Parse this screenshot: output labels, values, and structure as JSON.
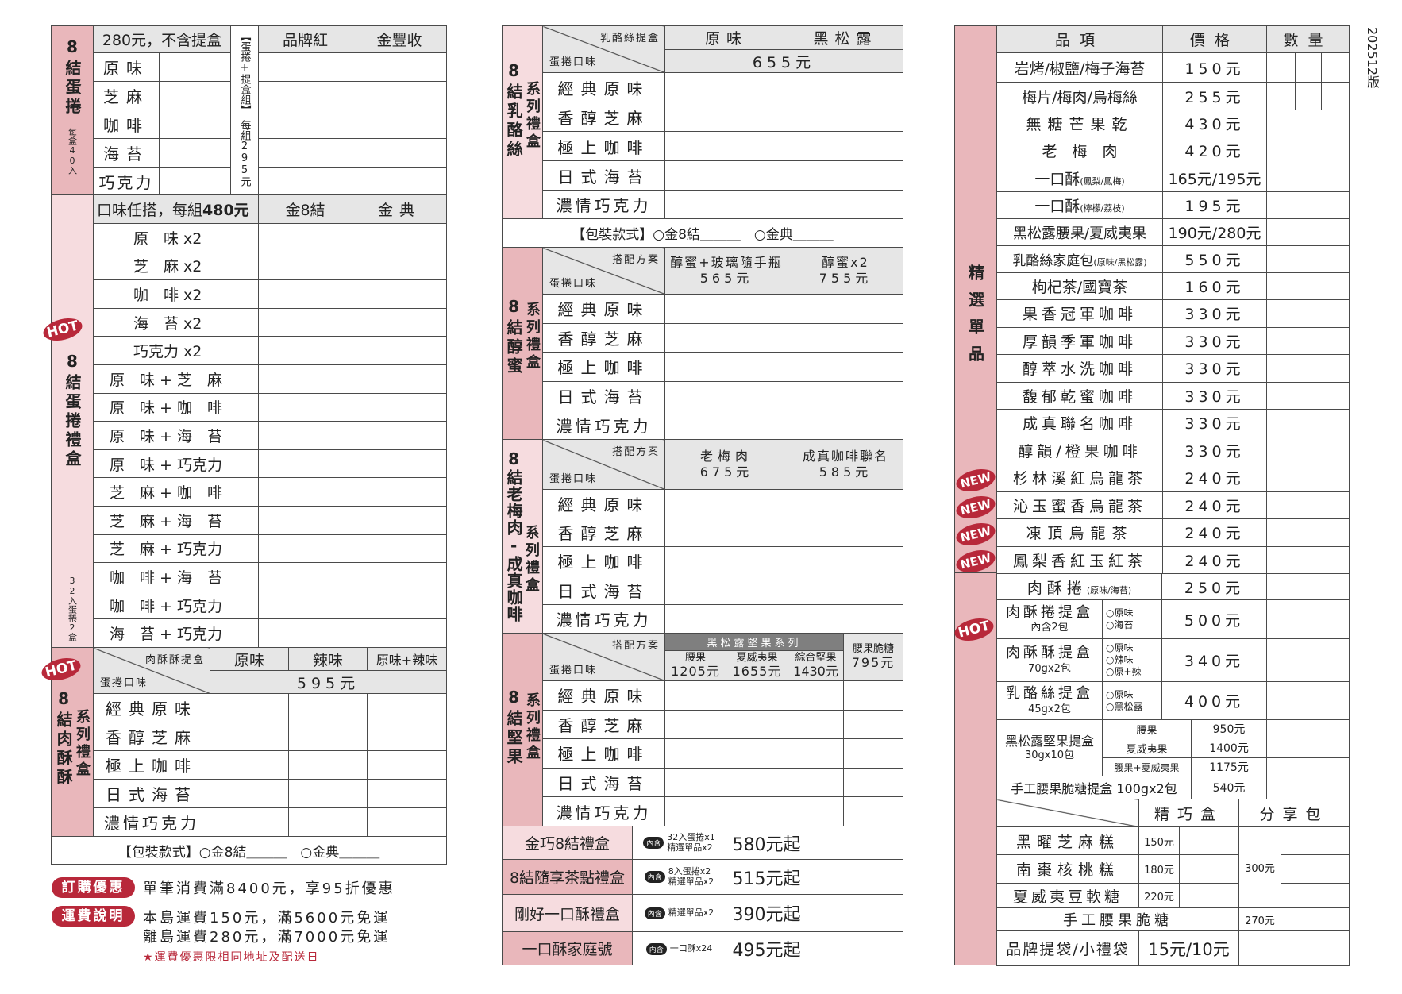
{
  "flavors": [
    "經典原味",
    "香醇芝麻",
    "極上咖啡",
    "日式海苔",
    "濃情巧克力"
  ],
  "packaging": {
    "label": "【包裝款式】",
    "opt1": "○金8結",
    "opt2": "○金典"
  },
  "left": {
    "egg_roll": {
      "title": "8結蛋捲",
      "subtitle": "每盒40入",
      "price_note": "280元，不含提盒",
      "flavors": [
        "原味",
        "芝麻",
        "咖啡",
        "海苔",
        "巧克力"
      ],
      "combo_label": "【蛋捲+提盒組】",
      "combo_price": "每組295元",
      "box_headers": [
        "品牌紅",
        "金豐收"
      ]
    },
    "gift_box": {
      "badge": "HOT",
      "title": "8結蛋捲禮盒",
      "subtitle": "32入蛋捲2盒",
      "header_text": "口味任搭，每組",
      "header_price": "480元",
      "box_headers": [
        "金8結",
        "金典"
      ],
      "items": [
        "原　味 x2",
        "芝　麻 x2",
        "咖　啡 x2",
        "海　苔 x2",
        "巧克力 x2",
        "原　味 + 芝　麻",
        "原　味 + 咖　啡",
        "原　味 + 海　苔",
        "原　味 + 巧克力",
        "芝　麻 + 咖　啡",
        "芝　麻 + 海　苔",
        "芝　麻 + 巧克力",
        "咖　啡 + 海　苔",
        "咖　啡 + 巧克力",
        "海　苔 + 巧克力"
      ]
    },
    "pork": {
      "badge": "HOT",
      "title": "8結肉酥酥",
      "series": "系列禮盒",
      "diag_top": "肉酥酥提盒",
      "diag_bottom": "蛋捲口味",
      "headers": [
        "原味",
        "辣味",
        "原味+辣味"
      ],
      "price": "595元"
    },
    "notes": {
      "promo_badge": "訂購優惠",
      "promo_text": "單筆消費滿8400元，享95折優惠",
      "shipping_badge": "運費說明",
      "shipping_lines": [
        "本島運費150元，滿5600元免運",
        "離島運費280元，滿7000元免運"
      ],
      "shipping_note": "★運費優惠限相同地址及配送日"
    }
  },
  "middle": {
    "cheese": {
      "title": "8結乳酪絲",
      "series": "系列禮盒",
      "diag_top": "乳酪絲提盒",
      "diag_bottom": "蛋捲口味",
      "headers": [
        "原味",
        "黑松露"
      ],
      "price": "655元"
    },
    "honey": {
      "title": "8結醇蜜",
      "series": "系列禮盒",
      "diag_top": "搭配方案",
      "diag_bottom": "蛋捲口味",
      "options": [
        {
          "name": "醇蜜+玻璃隨手瓶",
          "price": "565元"
        },
        {
          "name": "醇蜜x2",
          "price": "755元"
        }
      ]
    },
    "plum": {
      "title": "8結老梅肉-成真咖啡",
      "series": "系列禮盒",
      "diag_top": "搭配方案",
      "diag_bottom": "蛋捲口味",
      "options": [
        {
          "name": "老梅肉",
          "price": "675元"
        },
        {
          "name": "成真咖啡聯名",
          "price": "585元"
        }
      ]
    },
    "nuts": {
      "title": "8結堅果",
      "series": "系列禮盒",
      "diag_top": "搭配方案",
      "diag_bottom": "蛋捲口味",
      "group": "黑松露堅果系列",
      "options": [
        {
          "name": "腰果",
          "price": "1205元"
        },
        {
          "name": "夏威夷果",
          "price": "1655元"
        },
        {
          "name": "綜合堅果",
          "price": "1430元"
        },
        {
          "name": "腰果脆糖",
          "price": "795元"
        }
      ]
    },
    "include_badge": "內含",
    "gift_sets": [
      {
        "name": "金巧8結禮盒",
        "contents": [
          "32入蛋捲x1",
          "精選單品x2"
        ],
        "price": "580元起"
      },
      {
        "name": "8結隨享茶點禮盒",
        "contents": [
          "8入蛋捲x2",
          "精選單品x2"
        ],
        "price": "515元起"
      },
      {
        "name": "剛好一口酥禮盒",
        "contents": [
          "精選單品x2"
        ],
        "price": "390元起"
      },
      {
        "name": "一口酥家庭號",
        "contents": [
          "一口酥x24"
        ],
        "price": "495元起"
      }
    ]
  },
  "right": {
    "label": "精選單品",
    "version": "202512版",
    "headers": [
      "品項",
      "價格",
      "數量"
    ],
    "badge_new": "NEW",
    "badge_hot": "HOT",
    "items": [
      {
        "name": "岩烤/椒鹽/梅子海苔",
        "note": "",
        "price": "150元"
      },
      {
        "name": "梅片/梅肉/烏梅絲",
        "note": "",
        "price": "255元"
      },
      {
        "name": "無糖芒果乾",
        "note": "",
        "price": "430元"
      },
      {
        "name": "老　梅　肉",
        "note": "",
        "price": "420元"
      },
      {
        "name": "一口酥",
        "note": "(鳳梨/鳳梅)",
        "price": "165元/195元"
      },
      {
        "name": "一口酥",
        "note": "(檸檬/荔枝)",
        "price": "195元"
      },
      {
        "name": "黑松露腰果/夏威夷果",
        "note": "",
        "price": "190元/280元"
      },
      {
        "name": "乳酪絲家庭包",
        "note": "(原味/黑松露)",
        "price": "550元"
      },
      {
        "name": "枸杞茶/國寶茶",
        "note": "",
        "price": "160元"
      },
      {
        "name": "果香冠軍咖啡",
        "note": "",
        "price": "330元"
      },
      {
        "name": "厚韻季軍咖啡",
        "note": "",
        "price": "330元"
      },
      {
        "name": "醇萃水洗咖啡",
        "note": "",
        "price": "330元"
      },
      {
        "name": "馥郁乾蜜咖啡",
        "note": "",
        "price": "330元"
      },
      {
        "name": "成真聯名咖啡",
        "note": "",
        "price": "330元"
      },
      {
        "name": "醇韻/橙果咖啡",
        "note": "",
        "price": "330元"
      },
      {
        "name": "杉林溪紅烏龍茶",
        "note": "",
        "price": "240元",
        "new": true
      },
      {
        "name": "沁玉蜜香烏龍茶",
        "note": "",
        "price": "240元",
        "new": true
      },
      {
        "name": "凍頂烏龍茶",
        "note": "",
        "price": "240元",
        "new": true
      },
      {
        "name": "鳳梨香紅玉紅茶",
        "note": "",
        "price": "240元",
        "new": true
      }
    ],
    "pork_roll": {
      "name": "肉酥捲",
      "note": "(原味/海苔)",
      "price": "250元"
    },
    "boxes": [
      {
        "name": "肉酥捲提盒",
        "sub": "內含2包",
        "options": [
          "○原味",
          "○海苔"
        ],
        "price": "500元",
        "hot": true
      },
      {
        "name": "肉酥酥提盒",
        "sub": "70gx2包",
        "options": [
          "○原味",
          "○辣味",
          "○原+辣"
        ],
        "price": "340元"
      },
      {
        "name": "乳酪絲提盒",
        "sub": "45gx2包",
        "options": [
          "○原味",
          "○黑松露"
        ],
        "price": "400元"
      }
    ],
    "nut_box": {
      "name": "黑松露堅果提盒",
      "sub": "30gx10包",
      "variants": [
        {
          "name": "腰果",
          "price": "950元"
        },
        {
          "name": "夏威夷果",
          "price": "1400元"
        },
        {
          "name": "腰果+夏威夷果",
          "price": "1175元"
        }
      ]
    },
    "brittle_box": {
      "name": "手工腰果脆糖提盒 100gx2包",
      "price": "540元"
    },
    "cakes": {
      "headers": [
        "精巧盒",
        "分享包"
      ],
      "items": [
        {
          "name": "黑曜芝麻糕",
          "price": "150元"
        },
        {
          "name": "南棗核桃糕",
          "price": "180元"
        },
        {
          "name": "夏威夷豆軟糖",
          "price": "220元"
        }
      ],
      "share_price": "300元",
      "brittle": {
        "name": "手工腰果脆糖",
        "share_price": "270元"
      }
    },
    "bags": {
      "name": "品牌提袋/小禮袋",
      "price": "15元/10元"
    }
  },
  "colors": {
    "pink_dark": "#e9b7bb",
    "pink_light": "#f6dcdf",
    "header_gray": "#e6e6e6",
    "badge_red": "#b8283a",
    "group_gray": "#7f7f7f"
  }
}
